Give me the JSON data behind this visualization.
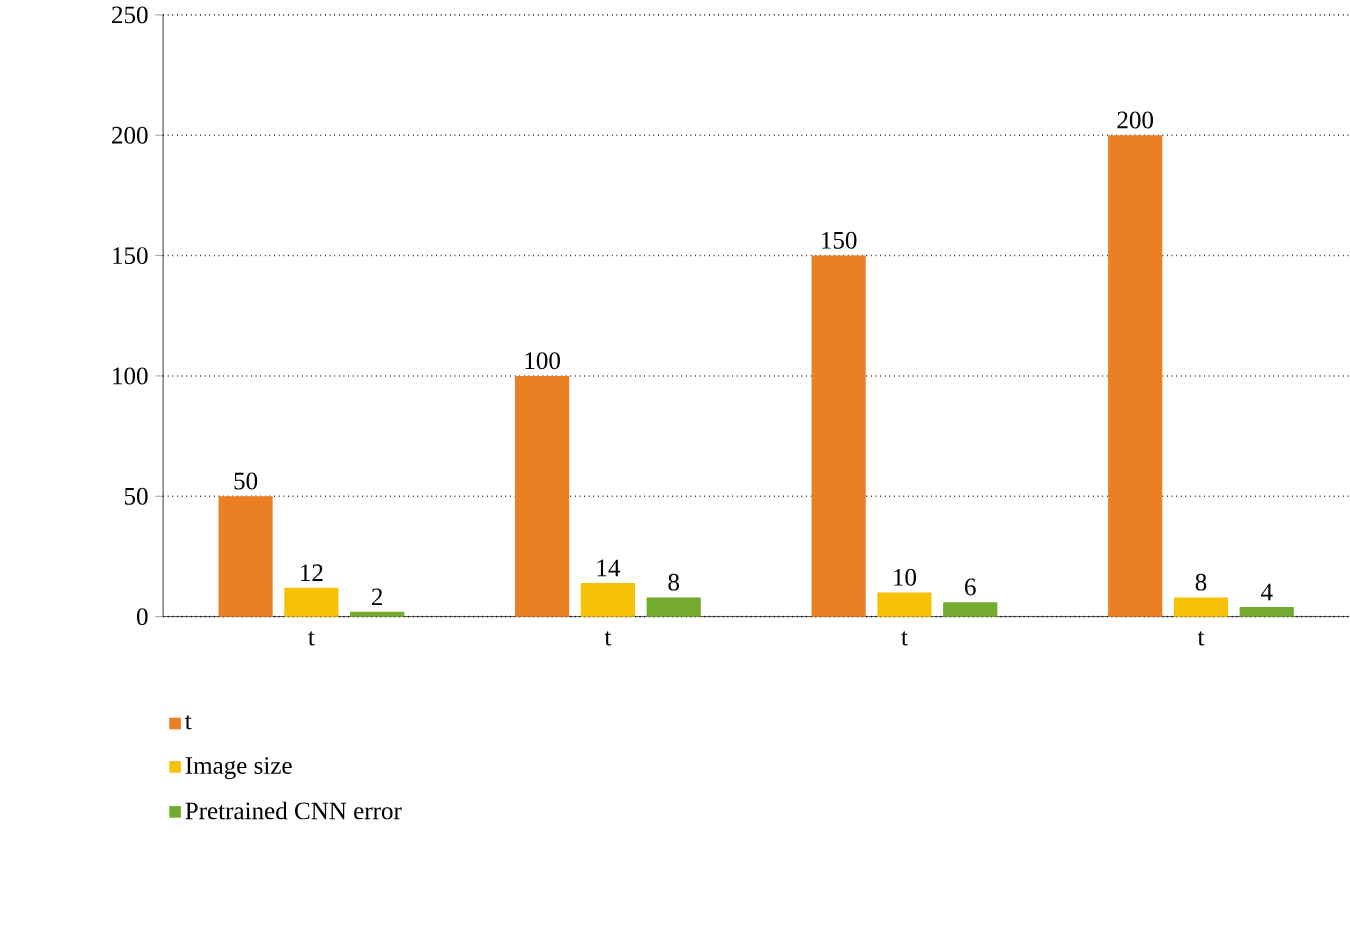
{
  "chart_data": {
    "type": "bar",
    "categories": [
      "t",
      "t",
      "t",
      "t"
    ],
    "series": [
      {
        "name": "t",
        "color": "#eb7f24",
        "values": [
          50,
          100,
          150,
          200
        ]
      },
      {
        "name": "Image size",
        "color": "#f7c108",
        "values": [
          12,
          14,
          10,
          8
        ]
      },
      {
        "name": "Pretrained CNN error",
        "color": "#74aa2e",
        "values": [
          2,
          8,
          6,
          4
        ]
      }
    ],
    "ylim": [
      0,
      250
    ],
    "yticks": [
      0,
      50,
      100,
      150,
      200,
      250
    ],
    "grid": "y",
    "legend": "bottom left",
    "data_labels": true
  }
}
